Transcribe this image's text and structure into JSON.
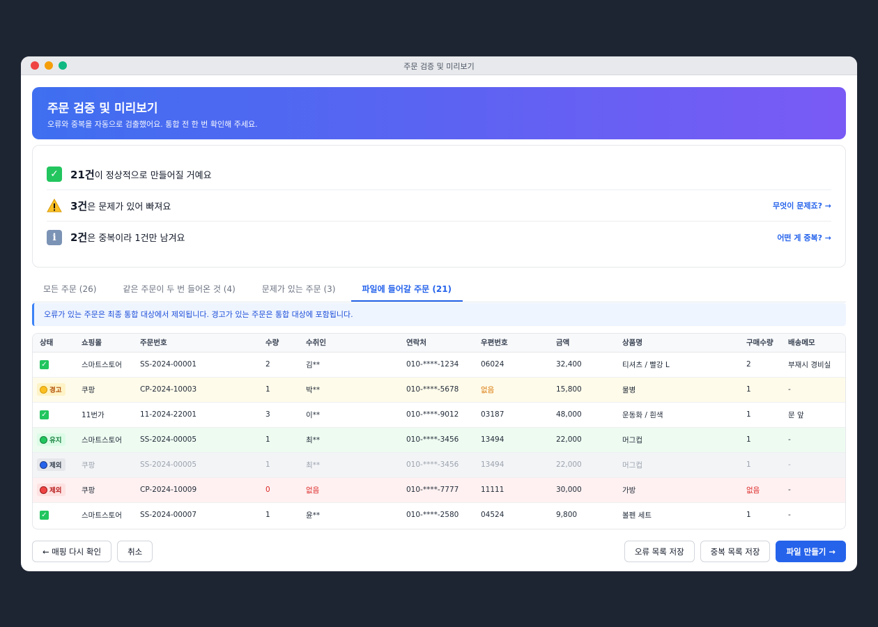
{
  "window": {
    "title": "주문 검증 및 미리보기"
  },
  "banner": {
    "title": "주문 검증 및 미리보기",
    "subtitle": "오류와 중복을 자동으로 검출했어요. 통합 전 한 번 확인해 주세요."
  },
  "summary": [
    {
      "icon": "check-icon",
      "count": "21건",
      "text": "이 정상적으로 만들어질 거예요",
      "link": ""
    },
    {
      "icon": "warning-icon",
      "count": "3건",
      "text": "은 문제가 있어 빠져요",
      "link": "무엇이 문제죠? →"
    },
    {
      "icon": "info-icon",
      "count": "2건",
      "text": "은 중복이라 1건만 남겨요",
      "link": "어떤 게 중복? →"
    }
  ],
  "tabs": [
    {
      "label": "모든 주문 (26)",
      "active": false
    },
    {
      "label": "같은 주문이 두 번 들어온 것 (4)",
      "active": false
    },
    {
      "label": "문제가 있는 주문 (3)",
      "active": false
    },
    {
      "label": "파일에 들어갈 주문 (21)",
      "active": true
    }
  ],
  "notice": "오류가 있는 주문은 최종 통합 대상에서 제외됩니다. 경고가 있는 주문은 통합 대상에 포함됩니다.",
  "table": {
    "headers": [
      "상태",
      "쇼핑몰",
      "주문번호",
      "수량",
      "수취인",
      "연락처",
      "우편번호",
      "금액",
      "상품명",
      "구매수량",
      "배송메모"
    ],
    "rows": [
      {
        "status": "ok",
        "badge": "",
        "cells": [
          "스마트스토어",
          "SS-2024-00001",
          "2",
          "김**",
          "010-****-1234",
          "06024",
          "32,400",
          "티셔츠 / 빨강 L",
          "2",
          "부재시 경비실"
        ]
      },
      {
        "status": "warn",
        "badge": "경고",
        "cells": [
          "쿠팡",
          "CP-2024-10003",
          "1",
          "박**",
          "010-****-5678",
          "없음",
          "15,800",
          "물병",
          "1",
          "-"
        ]
      },
      {
        "status": "ok",
        "badge": "",
        "cells": [
          "11번가",
          "11-2024-22001",
          "3",
          "이**",
          "010-****-9012",
          "03187",
          "48,000",
          "운동화 / 흰색",
          "1",
          "문 앞"
        ]
      },
      {
        "status": "keep",
        "badge": "유지",
        "cells": [
          "스마트스토어",
          "SS-2024-00005",
          "1",
          "최**",
          "010-****-3456",
          "13494",
          "22,000",
          "머그컵",
          "1",
          "-"
        ]
      },
      {
        "status": "excl-dup",
        "badge": "제외",
        "cells": [
          "쿠팡",
          "SS-2024-00005",
          "1",
          "최**",
          "010-****-3456",
          "13494",
          "22,000",
          "머그컵",
          "1",
          "-"
        ]
      },
      {
        "status": "excl-err",
        "badge": "제외",
        "cells": [
          "쿠팡",
          "CP-2024-10009",
          "0",
          "없음",
          "010-****-7777",
          "11111",
          "30,000",
          "가방",
          "없음",
          "-"
        ]
      },
      {
        "status": "ok",
        "badge": "",
        "cells": [
          "스마트스토어",
          "SS-2024-00007",
          "1",
          "윤**",
          "010-****-2580",
          "04524",
          "9,800",
          "볼펜 세트",
          "1",
          "-"
        ]
      }
    ]
  },
  "footer": {
    "back": "← 매핑 다시 확인",
    "cancel": "취소",
    "save_errors": "오류 목록 저장",
    "save_dups": "중복 목록 저장",
    "create": "파일 만들기 →"
  },
  "colors": {
    "accent": "#2563eb",
    "banner_start": "#3f6ff0",
    "banner_end": "#7a5af5"
  }
}
